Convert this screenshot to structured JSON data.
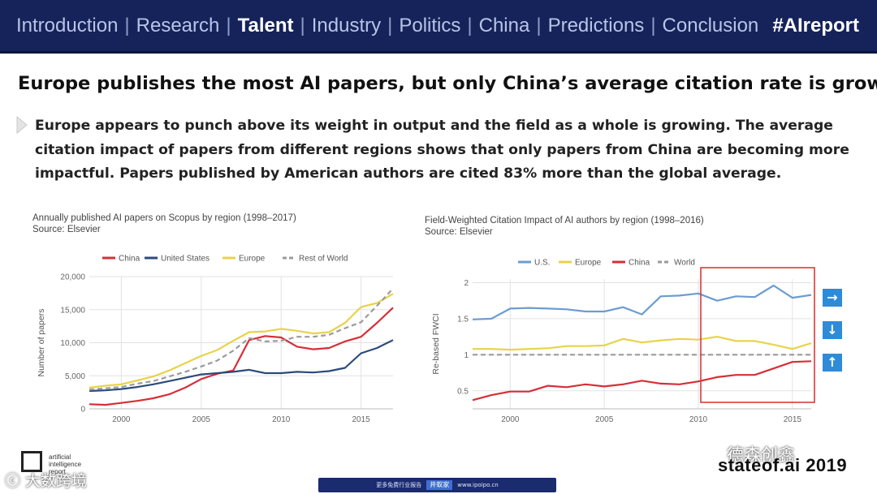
{
  "nav": {
    "items": [
      "Introduction",
      "Research",
      "Talent",
      "Industry",
      "Politics",
      "China",
      "Predictions",
      "Conclusion"
    ],
    "active": "Talent",
    "hashtag": "#AIreport"
  },
  "headline": "Europe publishes the most AI papers, but only China’s average citation rate is growing",
  "body_text": "Europe appears to punch above its weight in output and the field as a whole is growing. The average citation impact of papers from different regions shows that only papers from China are becoming more impactful. Papers published by American authors are cited 83% more than the global average.",
  "arrows": [
    "→",
    "↓",
    "↑"
  ],
  "footer": {
    "logo_lines": [
      "artificial",
      "intelligence",
      "report"
    ],
    "site": "stateof.ai 2019",
    "watermark_left": "ⓒ 大数跨境",
    "watermark_right": "德森创鑫",
    "banner_left": "更多免费行业报告",
    "banner_mid": "井蚁家",
    "banner_right": "www.ipoipo.cn"
  },
  "colors": {
    "china": "#d62f37",
    "us": "#2b4a7c",
    "us_light": "#6c9cd1",
    "europe": "#e8d34a",
    "rest": "#9b9b9b",
    "highlight": "#d83a3a",
    "nav_bg": "#16235a"
  },
  "chart_data": [
    {
      "type": "line",
      "title": "Annually published AI papers on Scopus by region (1998–2017)",
      "subtitle": "Source: Elsevier",
      "xlabel": "",
      "ylabel": "Number of papers",
      "xlim": [
        1998,
        2017
      ],
      "ylim": [
        0,
        20000
      ],
      "xticks": [
        2000,
        2005,
        2010,
        2015
      ],
      "yticks": [
        0,
        5000,
        10000,
        15000,
        20000
      ],
      "ytick_labels": [
        "0",
        "5,000",
        "10,000",
        "15,000",
        "20,000"
      ],
      "legend_position": "top",
      "grid": true,
      "x": [
        1998,
        1999,
        2000,
        2001,
        2002,
        2003,
        2004,
        2005,
        2006,
        2007,
        2008,
        2009,
        2010,
        2011,
        2012,
        2013,
        2014,
        2015,
        2016,
        2017
      ],
      "series": [
        {
          "name": "China",
          "color": "#d62f37",
          "dashed": false,
          "values": [
            700,
            600,
            900,
            1200,
            1600,
            2200,
            3200,
            4500,
            5300,
            5800,
            10400,
            11000,
            10800,
            9400,
            9000,
            9200,
            10200,
            10900,
            13000,
            15300
          ]
        },
        {
          "name": "United States",
          "color": "#2b4a7c",
          "dashed": false,
          "values": [
            2700,
            2800,
            3000,
            3300,
            3700,
            4200,
            4700,
            5200,
            5400,
            5600,
            5900,
            5400,
            5400,
            5600,
            5500,
            5700,
            6200,
            8400,
            9200,
            10400
          ]
        },
        {
          "name": "Europe",
          "color": "#e8d34a",
          "dashed": false,
          "values": [
            3200,
            3500,
            3700,
            4300,
            4900,
            5800,
            6900,
            8000,
            8900,
            10300,
            11600,
            11700,
            12100,
            11800,
            11400,
            11600,
            13000,
            15400,
            16000,
            17400
          ]
        },
        {
          "name": "Rest of World",
          "color": "#9b9b9b",
          "dashed": true,
          "values": [
            2900,
            3100,
            3300,
            3800,
            4200,
            4900,
            5600,
            6400,
            7300,
            8800,
            10700,
            10200,
            10300,
            10900,
            10900,
            11200,
            12200,
            13100,
            15600,
            18200
          ]
        }
      ]
    },
    {
      "type": "line",
      "title": "Field-Weighted Citation Impact of AI authors by region (1998–2016)",
      "subtitle": "Source: Elsevier",
      "xlabel": "",
      "ylabel": "Re-based FWCI",
      "xlim": [
        1998,
        2016
      ],
      "ylim": [
        0.25,
        2.05
      ],
      "xticks": [
        2000,
        2005,
        2010,
        2015
      ],
      "yticks": [
        0.5,
        1,
        1.5,
        2
      ],
      "ytick_labels": [
        "0.5",
        "1",
        "1.5",
        "2"
      ],
      "legend_position": "top",
      "grid": true,
      "highlight_range": [
        2010,
        2016
      ],
      "x": [
        1998,
        1999,
        2000,
        2001,
        2002,
        2003,
        2004,
        2005,
        2006,
        2007,
        2008,
        2009,
        2010,
        2011,
        2012,
        2013,
        2014,
        2015,
        2016
      ],
      "series": [
        {
          "name": "U.S.",
          "color": "#6c9cd1",
          "dashed": false,
          "values": [
            1.49,
            1.5,
            1.64,
            1.65,
            1.64,
            1.63,
            1.6,
            1.6,
            1.66,
            1.56,
            1.81,
            1.82,
            1.85,
            1.75,
            1.81,
            1.8,
            1.96,
            1.79,
            1.83
          ]
        },
        {
          "name": "Europe",
          "color": "#e8d34a",
          "dashed": false,
          "values": [
            1.08,
            1.08,
            1.07,
            1.08,
            1.09,
            1.12,
            1.12,
            1.13,
            1.22,
            1.17,
            1.2,
            1.22,
            1.21,
            1.25,
            1.19,
            1.19,
            1.14,
            1.08,
            1.16
          ]
        },
        {
          "name": "China",
          "color": "#d62f37",
          "dashed": false,
          "values": [
            0.37,
            0.44,
            0.49,
            0.49,
            0.57,
            0.55,
            0.59,
            0.56,
            0.59,
            0.64,
            0.6,
            0.59,
            0.63,
            0.69,
            0.72,
            0.72,
            0.81,
            0.9,
            0.91
          ]
        },
        {
          "name": "World",
          "color": "#9b9b9b",
          "dashed": true,
          "values": [
            1,
            1,
            1,
            1,
            1,
            1,
            1,
            1,
            1,
            1,
            1,
            1,
            1,
            1,
            1,
            1,
            1,
            1,
            1
          ]
        }
      ]
    }
  ]
}
